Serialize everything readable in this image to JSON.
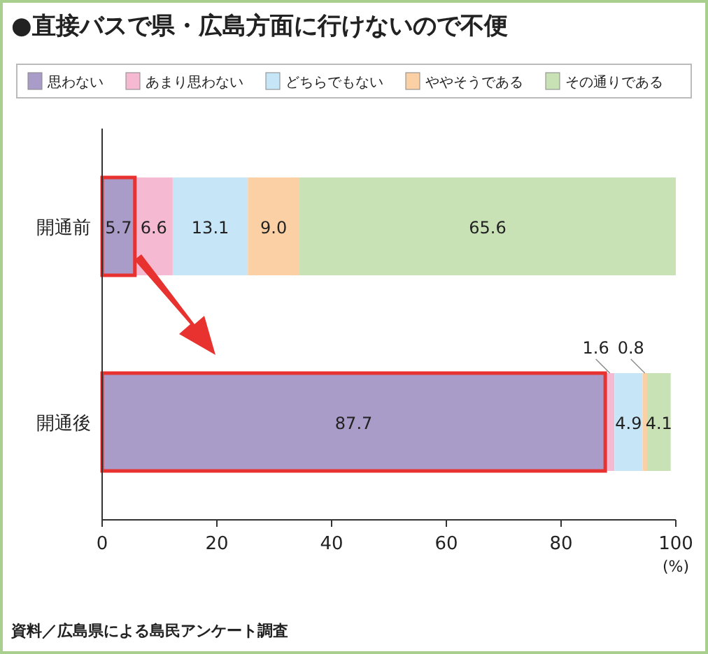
{
  "chart_data": {
    "type": "bar",
    "orientation": "horizontal",
    "stacked": true,
    "title": "●直接バスで県・広島方面に行けないので不便",
    "xlabel": "(%)",
    "categories": [
      "開通前",
      "開通後"
    ],
    "series": [
      {
        "name": "思わない",
        "color": "#a99cc9",
        "values": [
          5.7,
          87.7
        ],
        "value_labels": [
          "5.7",
          "87.7"
        ]
      },
      {
        "name": "あまり思わない",
        "color": "#f6b9d2",
        "values": [
          6.6,
          1.6
        ],
        "value_labels": [
          "6.6",
          "1.6"
        ]
      },
      {
        "name": "どちらでもない",
        "color": "#c6e6f8",
        "values": [
          13.1,
          4.9
        ],
        "value_labels": [
          "13.1",
          "4.9"
        ]
      },
      {
        "name": "ややそうである",
        "color": "#fbd0a4",
        "values": [
          9.0,
          0.8
        ],
        "value_labels": [
          "9.0",
          "0.8"
        ]
      },
      {
        "name": "その通りである",
        "color": "#c8e1b5",
        "values": [
          65.6,
          4.1
        ],
        "value_labels": [
          "65.6",
          "4.1"
        ]
      }
    ],
    "xlim": [
      0,
      100
    ],
    "xticks": [
      0,
      20,
      40,
      60,
      80,
      100
    ],
    "legend": "top",
    "annotations": [
      "資料／広島県による島民アンケート調査"
    ]
  }
}
